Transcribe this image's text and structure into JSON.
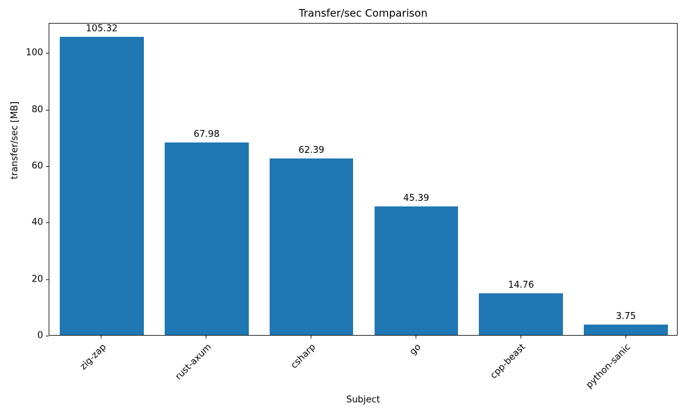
{
  "chart_data": {
    "type": "bar",
    "title": "Transfer/sec Comparison",
    "xlabel": "Subject",
    "ylabel": "transfer/sec [MB]",
    "categories": [
      "zig-zap",
      "rust-axum",
      "csharp",
      "go",
      "cpp-beast",
      "python-sanic"
    ],
    "values": [
      105.32,
      67.98,
      62.39,
      45.39,
      14.76,
      3.75
    ],
    "value_labels": [
      "105.32",
      "67.98",
      "62.39",
      "45.39",
      "14.76",
      "3.75"
    ],
    "bar_color": "#1f77b4",
    "ylim": [
      0,
      110.6
    ],
    "yticks": [
      0,
      20,
      40,
      60,
      80,
      100
    ],
    "grid": false,
    "legend": "none"
  }
}
